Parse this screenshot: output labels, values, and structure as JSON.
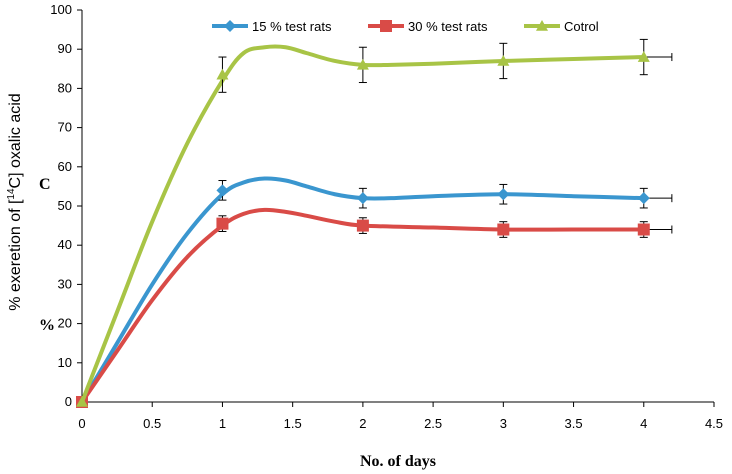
{
  "chart_data": {
    "type": "line",
    "title": "",
    "xlabel": "No. of days",
    "ylabel": "% exeretion of [",
    "ylabel_sup": "14",
    "ylabel_suffix": "C] oxalic acid",
    "xlim": [
      0,
      4.5
    ],
    "ylim": [
      0,
      100
    ],
    "x_ticks": [
      "0",
      "0.5",
      "1",
      "1.5",
      "2",
      "2.5",
      "3",
      "3.5",
      "4",
      "4.5"
    ],
    "y_ticks": [
      "0",
      "10",
      "20",
      "30",
      "40",
      "50",
      "60",
      "70",
      "80",
      "90",
      "100"
    ],
    "x_tick_values": [
      0,
      0.5,
      1,
      1.5,
      2,
      2.5,
      3,
      3.5,
      4,
      4.5
    ],
    "y_tick_values": [
      0,
      10,
      20,
      30,
      40,
      50,
      60,
      70,
      80,
      90,
      100
    ],
    "annotations": [
      "C",
      "%"
    ],
    "legend_position": "top",
    "series": [
      {
        "name": "15 % test rats",
        "color": "#3a96cf",
        "marker": "diamond",
        "x": [
          0,
          1,
          2,
          3,
          4
        ],
        "values": [
          0,
          54,
          52,
          53,
          52
        ],
        "error": [
          0,
          2.5,
          2.5,
          2.5,
          2.5
        ],
        "curve_x": [
          0,
          0.25,
          0.5,
          0.75,
          1,
          1.15,
          1.3,
          1.45,
          1.6,
          1.8,
          2,
          2.2,
          2.5,
          3,
          3.5,
          4
        ],
        "curve_y": [
          0,
          15,
          30,
          43,
          53,
          56,
          57,
          56.5,
          55,
          53,
          52,
          52,
          52.5,
          53,
          52.5,
          52
        ]
      },
      {
        "name": "30 % test rats",
        "color": "#d94b47",
        "marker": "square",
        "x": [
          0,
          1,
          2,
          3,
          4
        ],
        "values": [
          0,
          45.5,
          45,
          44,
          44
        ],
        "error": [
          0,
          2,
          2,
          2,
          2
        ],
        "curve_x": [
          0,
          0.25,
          0.5,
          0.75,
          1,
          1.15,
          1.3,
          1.45,
          1.6,
          1.8,
          2,
          2.5,
          3,
          3.5,
          4
        ],
        "curve_y": [
          0,
          13,
          26,
          37,
          45,
          48,
          49,
          48.5,
          47.5,
          46,
          45,
          44.5,
          44,
          44,
          44
        ]
      },
      {
        "name": "Cotrol",
        "color": "#a8c446",
        "marker": "triangle",
        "x": [
          0,
          1,
          2,
          3,
          4
        ],
        "values": [
          0,
          83.5,
          86,
          87,
          88
        ],
        "error": [
          0,
          4.5,
          4.5,
          4.5,
          4.5
        ],
        "curve_x": [
          0,
          0.25,
          0.5,
          0.75,
          1,
          1.15,
          1.3,
          1.45,
          1.6,
          1.8,
          2,
          2.2,
          2.5,
          3,
          3.5,
          4
        ],
        "curve_y": [
          0,
          23,
          46,
          66,
          82,
          89,
          90.5,
          90.5,
          89,
          87,
          86,
          86,
          86.3,
          87,
          87.5,
          88
        ]
      }
    ]
  }
}
